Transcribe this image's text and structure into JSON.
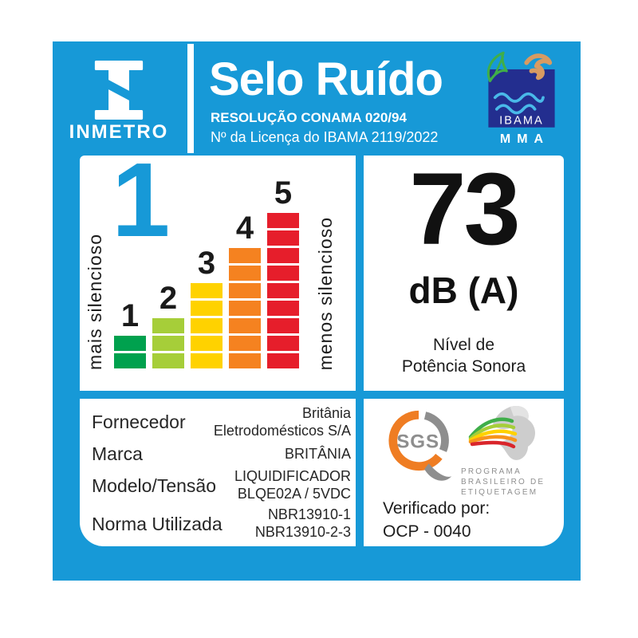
{
  "label": {
    "brand": {
      "logo_text": "INMETRO"
    },
    "header": {
      "title": "Selo Ruído",
      "subtitle1": "RESOLUÇÃO CONAMA 020/94",
      "subtitle2": "Nº da Licença do IBAMA 2119/2022"
    },
    "ibama": {
      "name": "IBAMA",
      "ministry": "MMA"
    },
    "noise_class": {
      "selected": "1",
      "left_axis": "mais silencioso",
      "right_axis": "menos silencioso"
    },
    "noise_level": {
      "value": "73",
      "unit": "dB (A)",
      "caption_line1": "Nível de",
      "caption_line2": "Potência Sonora"
    },
    "details": {
      "rows": [
        {
          "label": "Fornecedor",
          "lines": [
            "Britânia",
            "Eletrodomésticos S/A"
          ]
        },
        {
          "label": "Marca",
          "lines": [
            "BRITÂNIA"
          ]
        },
        {
          "label": "Modelo/Tensão",
          "lines": [
            "LIQUIDIFICADOR",
            "BLQE02A / 5VDC"
          ]
        },
        {
          "label": "Norma Utilizada",
          "lines": [
            "NBR13910-1",
            "NBR13910-2-3"
          ]
        }
      ]
    },
    "verification": {
      "sgs_label": "SGS",
      "pbe_line1": "PROGRAMA",
      "pbe_line2": "BRASILEIRO DE",
      "pbe_line3": "ETIQUETAGEM",
      "verified_by": "Verificado por:",
      "ocp": "OCP - 0040"
    }
  },
  "chart_data": {
    "type": "bar",
    "title": "Escala de classes de ruído (Selo Ruído)",
    "categories": [
      "1",
      "2",
      "3",
      "4",
      "5"
    ],
    "values": [
      2,
      3,
      5,
      7,
      9
    ],
    "unit": "segments",
    "colors": [
      "#00A14E",
      "#A6CE39",
      "#FFD200",
      "#F58220",
      "#E61E2B"
    ],
    "selected_class": "1",
    "left_annotation": "mais silencioso",
    "right_annotation": "menos silencioso",
    "measured_value": {
      "value": 73,
      "unit": "dB (A)",
      "label": "Nível de Potência Sonora"
    },
    "legend_position": "none",
    "grid": false
  },
  "colors": {
    "card_blue": "#1799D7",
    "ibama_navy": "#232E8F",
    "text_dark": "#1c1c1c",
    "sgs_orange": "#EF7D23",
    "sgs_gray": "#8E8E8E"
  }
}
